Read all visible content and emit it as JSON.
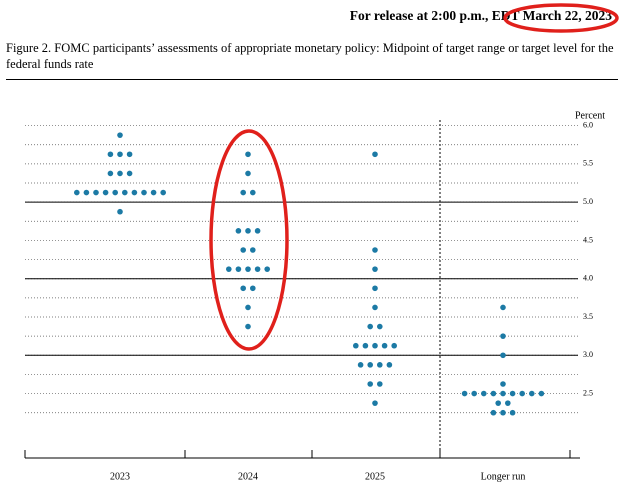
{
  "release": "For release at 2:00 p.m., EDT",
  "release_date": "March 22, 2023",
  "chart_data": {
    "type": "dot",
    "title": "Figure 2.  FOMC participants’ assessments of appropriate monetary policy: Midpoint of target range or target level for the federal funds rate",
    "y_label": "Percent",
    "categories": [
      "2023",
      "2024",
      "2025",
      "Longer run"
    ],
    "dots": [
      [
        {
          "rate": 5.875,
          "count": 1
        },
        {
          "rate": 5.625,
          "count": 3
        },
        {
          "rate": 5.375,
          "count": 3
        },
        {
          "rate": 5.125,
          "count": 10
        },
        {
          "rate": 4.875,
          "count": 1
        }
      ],
      [
        {
          "rate": 5.625,
          "count": 1
        },
        {
          "rate": 5.375,
          "count": 1
        },
        {
          "rate": 5.125,
          "count": 2
        },
        {
          "rate": 4.625,
          "count": 3
        },
        {
          "rate": 4.375,
          "count": 2
        },
        {
          "rate": 4.125,
          "count": 5
        },
        {
          "rate": 3.875,
          "count": 2
        },
        {
          "rate": 3.625,
          "count": 1
        },
        {
          "rate": 3.375,
          "count": 1
        }
      ],
      [
        {
          "rate": 5.625,
          "count": 1
        },
        {
          "rate": 4.375,
          "count": 1
        },
        {
          "rate": 4.125,
          "count": 1
        },
        {
          "rate": 3.875,
          "count": 1
        },
        {
          "rate": 3.625,
          "count": 1
        },
        {
          "rate": 3.375,
          "count": 2
        },
        {
          "rate": 3.125,
          "count": 5
        },
        {
          "rate": 2.875,
          "count": 4
        },
        {
          "rate": 2.625,
          "count": 2
        },
        {
          "rate": 2.375,
          "count": 1
        }
      ],
      [
        {
          "rate": 3.625,
          "count": 1
        },
        {
          "rate": 3.25,
          "count": 1
        },
        {
          "rate": 3.0,
          "count": 1
        },
        {
          "rate": 2.625,
          "count": 1
        },
        {
          "rate": 2.5,
          "count": 9
        },
        {
          "rate": 2.375,
          "count": 2
        },
        {
          "rate": 2.25,
          "count": 3
        }
      ]
    ],
    "color": "#1c7aa5",
    "ylim": [
      1.75,
      6.125
    ],
    "yticks": [
      {
        "value": 6,
        "label": "6.0"
      },
      5.5,
      {
        "value": 5,
        "label": "5.0"
      },
      4.5,
      {
        "value": 4,
        "label": "4.0"
      },
      3.5,
      {
        "value": 3,
        "label": "3.0"
      },
      2.5
    ],
    "minor_grid": [
      5.75,
      5.25,
      4.75,
      4.25,
      3.75,
      3.25,
      2.75,
      2.25
    ],
    "solid_grid": [
      5,
      4,
      3
    ]
  }
}
